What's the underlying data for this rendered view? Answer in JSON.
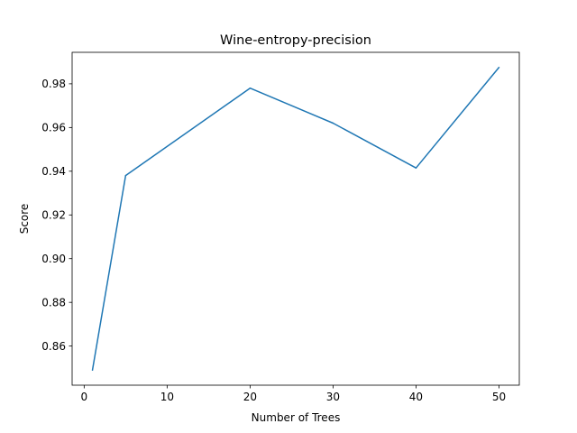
{
  "chart_data": {
    "type": "line",
    "title": "Wine-entropy-precision",
    "xlabel": "Number of Trees",
    "ylabel": "Score",
    "x": [
      1,
      5,
      20,
      30,
      40,
      50
    ],
    "series": [
      {
        "values": [
          0.849,
          0.938,
          0.978,
          0.962,
          0.9415,
          0.9875
        ],
        "color": "#1f77b4"
      }
    ],
    "xlim": [
      -1.45,
      52.45
    ],
    "ylim": [
      0.8421,
      0.9944
    ],
    "xticks": [
      0,
      10,
      20,
      30,
      40,
      50
    ],
    "xtick_labels": [
      "0",
      "10",
      "20",
      "30",
      "40",
      "50"
    ],
    "yticks": [
      0.86,
      0.88,
      0.9,
      0.92,
      0.94,
      0.96,
      0.98
    ],
    "ytick_labels": [
      "0.86",
      "0.88",
      "0.90",
      "0.92",
      "0.94",
      "0.96",
      "0.98"
    ],
    "grid": false,
    "legend": false
  }
}
